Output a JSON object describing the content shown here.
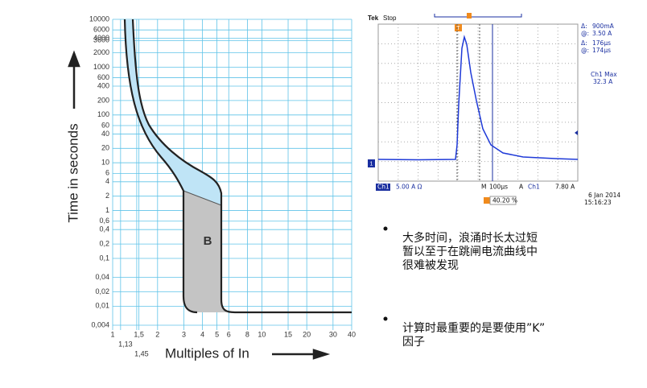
{
  "trip_curve": {
    "yticks": [
      10000,
      6000,
      4000,
      3600,
      2000,
      1000,
      600,
      400,
      200,
      100,
      60,
      40,
      20,
      10,
      6,
      4,
      2,
      1,
      {
        "value": 0.6,
        "label": "0,6"
      },
      {
        "value": 0.4,
        "label": "0,4"
      },
      {
        "value": 0.2,
        "label": "0,2"
      },
      {
        "value": 0.1,
        "label": "0,1"
      },
      {
        "value": 0.04,
        "label": "0,04"
      },
      {
        "value": 0.02,
        "label": "0,02"
      },
      {
        "value": 0.01,
        "label": "0,01"
      },
      {
        "value": 0.004,
        "label": "0,004"
      }
    ],
    "xticks": [
      1,
      {
        "value": 1.13,
        "label": "1,13"
      },
      {
        "value": 1.45,
        "label": "1,45"
      },
      {
        "value": 1.5,
        "label": "1,5"
      },
      2,
      3,
      4,
      5,
      6,
      8,
      10,
      15,
      20,
      30,
      40
    ],
    "y_axis_label": "Time in seconds",
    "x_axis_label": "Multiples of In",
    "region_label": "B"
  },
  "scope": {
    "brand": "Tek",
    "state": "Stop",
    "cursor_readouts": [
      [
        "Δ:",
        "900mA"
      ],
      [
        "@:",
        "3.50 A"
      ],
      [
        "Δ:",
        "176µs"
      ],
      [
        "@:",
        "174µs"
      ]
    ],
    "measurement_name": "Ch1 Max",
    "measurement_value": "32.3 A",
    "channel": "Ch1",
    "channel_scale": "5.00 A Ω",
    "timebase_label": "M",
    "timebase": "100µs",
    "trigger_mode": "A",
    "trigger_channel": "Ch1",
    "trigger_level": "7.80 A",
    "trigger_position": "40.20 %",
    "date": "6 Jan  2014",
    "time": "15:16:23",
    "trigger_marker": "T",
    "channel_marker": "1"
  },
  "bullets": [
    [
      "大多时间，浪涌时长太过短",
      "暂以至于在跳闸电流曲线中",
      "很难被发现"
    ],
    [
      "计算时最重要的是要使用”K”",
      "因子"
    ]
  ]
}
